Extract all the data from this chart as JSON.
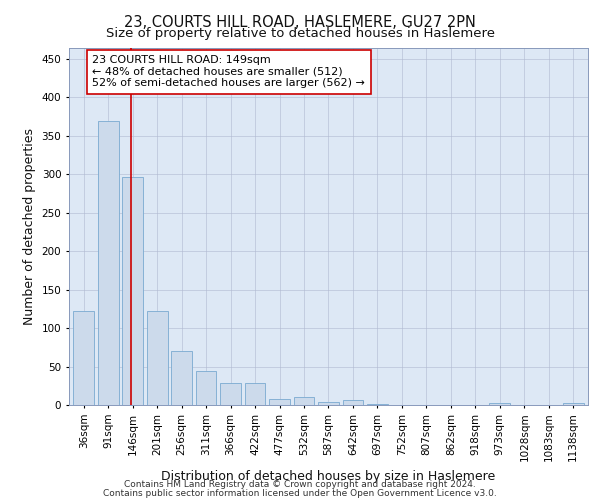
{
  "title_line1": "23, COURTS HILL ROAD, HASLEMERE, GU27 2PN",
  "title_line2": "Size of property relative to detached houses in Haslemere",
  "xlabel": "Distribution of detached houses by size in Haslemere",
  "ylabel": "Number of detached properties",
  "bar_labels": [
    "36sqm",
    "91sqm",
    "146sqm",
    "201sqm",
    "256sqm",
    "311sqm",
    "366sqm",
    "422sqm",
    "477sqm",
    "532sqm",
    "587sqm",
    "642sqm",
    "697sqm",
    "752sqm",
    "807sqm",
    "862sqm",
    "918sqm",
    "973sqm",
    "1028sqm",
    "1083sqm",
    "1138sqm"
  ],
  "bar_values": [
    122,
    370,
    297,
    122,
    70,
    44,
    29,
    29,
    8,
    10,
    4,
    6,
    1,
    0,
    0,
    0,
    0,
    2,
    0,
    0,
    2
  ],
  "bar_color": "#ccdaeb",
  "bar_edge_color": "#7aaad0",
  "vline_x": 2,
  "vline_color": "#cc0000",
  "annotation_text": "23 COURTS HILL ROAD: 149sqm\n← 48% of detached houses are smaller (512)\n52% of semi-detached houses are larger (562) →",
  "annotation_box_color": "#ffffff",
  "annotation_box_edge": "#cc0000",
  "ylim": [
    0,
    465
  ],
  "yticks": [
    0,
    50,
    100,
    150,
    200,
    250,
    300,
    350,
    400,
    450
  ],
  "plot_background": "#dde8f5",
  "footer_line1": "Contains HM Land Registry data © Crown copyright and database right 2024.",
  "footer_line2": "Contains public sector information licensed under the Open Government Licence v3.0.",
  "title_fontsize": 10.5,
  "subtitle_fontsize": 9.5,
  "axis_label_fontsize": 9,
  "tick_fontsize": 7.5,
  "annotation_fontsize": 8,
  "footer_fontsize": 6.5
}
